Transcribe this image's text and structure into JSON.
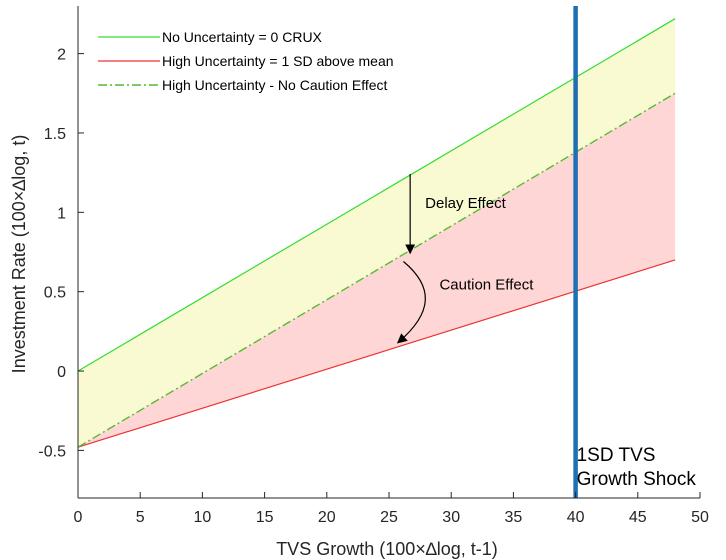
{
  "chart_data": {
    "type": "line",
    "xlabel": "TVS Growth (100×∆log, t-1)",
    "ylabel": "Investment Rate (100×∆log, t)",
    "xlim": [
      0,
      50
    ],
    "ylim": [
      -0.8,
      2.3
    ],
    "xticks": [
      0,
      5,
      10,
      15,
      20,
      25,
      30,
      35,
      40,
      45,
      50
    ],
    "yticks": [
      -0.5,
      0,
      0.5,
      1,
      1.5,
      2
    ],
    "xtick_labels": [
      "0",
      "5",
      "10",
      "15",
      "20",
      "25",
      "30",
      "35",
      "40",
      "45",
      "50"
    ],
    "ytick_labels": [
      "-0.5",
      "0",
      "0.5",
      "1",
      "1.5",
      "2"
    ],
    "grid": false,
    "legend_position": "top-left",
    "series": [
      {
        "name": "No Uncertainty = 0 CRUX",
        "x": [
          0,
          48
        ],
        "y": [
          0.0,
          2.22
        ],
        "color": "#33dd33",
        "style": "solid"
      },
      {
        "name": "High Uncertainty = 1 SD above mean",
        "x": [
          0,
          48
        ],
        "y": [
          -0.48,
          0.7
        ],
        "color": "#ee3333",
        "style": "solid"
      },
      {
        "name": "High Uncertainty - No Caution Effect",
        "x": [
          0,
          48
        ],
        "y": [
          -0.48,
          1.75
        ],
        "color": "#55bb33",
        "style": "dash-dot"
      }
    ],
    "shaded_regions": [
      {
        "between": [
          "No Uncertainty = 0 CRUX",
          "High Uncertainty - No Caution Effect"
        ],
        "color": "#fafad2"
      },
      {
        "between": [
          "High Uncertainty - No Caution Effect",
          "High Uncertainty = 1 SD above mean"
        ],
        "color": "#ffd6d6"
      }
    ],
    "vertical_lines": [
      {
        "x": 40,
        "color": "#1f6fb4",
        "label_lines": [
          "1SD TVS",
          "Growth Shock"
        ]
      }
    ],
    "annotations": [
      {
        "text": "Delay Effect",
        "at_x": 26.7
      },
      {
        "text": "Caution Effect",
        "at_x": 26.0
      }
    ]
  }
}
